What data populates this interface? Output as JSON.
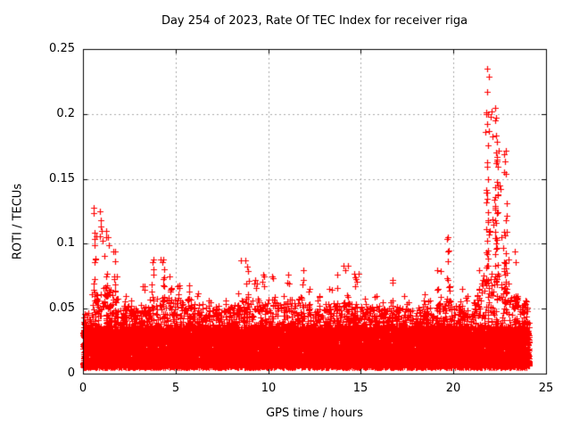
{
  "page": {
    "background": "#ffffff"
  },
  "chart_data": {
    "type": "scatter",
    "title": "Day 254 of 2023, Rate Of TEC Index for receiver riga",
    "xlabel": "GPS time / hours",
    "ylabel": "ROTI / TECUs",
    "xlim": [
      0,
      25
    ],
    "ylim": [
      0,
      0.25
    ],
    "xticks": [
      0,
      5,
      10,
      15,
      20,
      25
    ],
    "xtick_labels": [
      "0",
      "5",
      "10",
      "15",
      "20",
      "25"
    ],
    "yticks": [
      0,
      0.05,
      0.1,
      0.15,
      0.2,
      0.25
    ],
    "ytick_labels": [
      "0",
      "0.05",
      "0.1",
      "0.15",
      "0.2",
      "0.25"
    ],
    "grid": true,
    "legend_position": "none",
    "series_name": "ROTI",
    "marker_shape": "plus",
    "marker_color": "#ff0000",
    "grid_color": "#a8a8a8",
    "axis_color": "#000000",
    "text_color": "#000000",
    "data_hours_range": [
      0,
      24.1
    ],
    "baseline_band": {
      "y_min": 0.004,
      "y_max": 0.036
    },
    "bin_width_hours": 0.5,
    "bins_start_hour": 0,
    "bins_dense_top": [
      0.04,
      0.055,
      0.06,
      0.055,
      0.045,
      0.044,
      0.046,
      0.05,
      0.052,
      0.052,
      0.05,
      0.05,
      0.046,
      0.044,
      0.042,
      0.044,
      0.046,
      0.052,
      0.05,
      0.048,
      0.05,
      0.046,
      0.05,
      0.05,
      0.046,
      0.045,
      0.046,
      0.048,
      0.048,
      0.045,
      0.044,
      0.044,
      0.042,
      0.044,
      0.043,
      0.042,
      0.044,
      0.042,
      0.046,
      0.05,
      0.046,
      0.044,
      0.052,
      0.068,
      0.07,
      0.062,
      0.052,
      0.046
    ],
    "bins_max": [
      0.048,
      0.128,
      0.11,
      0.094,
      0.06,
      0.056,
      0.067,
      0.088,
      0.088,
      0.075,
      0.068,
      0.068,
      0.062,
      0.056,
      0.052,
      0.056,
      0.062,
      0.087,
      0.072,
      0.076,
      0.075,
      0.06,
      0.076,
      0.08,
      0.065,
      0.06,
      0.065,
      0.076,
      0.083,
      0.077,
      0.058,
      0.06,
      0.055,
      0.072,
      0.06,
      0.055,
      0.061,
      0.056,
      0.08,
      0.105,
      0.065,
      0.06,
      0.08,
      0.235,
      0.205,
      0.172,
      0.094,
      0.056
    ],
    "notable_points": [
      [
        0.9,
        0.106
      ],
      [
        0.92,
        0.125
      ],
      [
        0.95,
        0.118
      ],
      [
        0.97,
        0.113
      ],
      [
        1.0,
        0.11
      ],
      [
        1.05,
        0.102
      ],
      [
        1.35,
        0.105
      ],
      [
        1.38,
        0.099
      ],
      [
        1.62,
        0.094
      ],
      [
        3.78,
        0.086
      ],
      [
        4.2,
        0.088
      ],
      [
        8.55,
        0.087
      ],
      [
        14.05,
        0.083
      ],
      [
        14.15,
        0.08
      ],
      [
        14.9,
        0.077
      ],
      [
        16.7,
        0.07
      ],
      [
        19.3,
        0.079
      ],
      [
        19.65,
        0.104
      ],
      [
        21.75,
        0.201
      ],
      [
        21.8,
        0.235
      ],
      [
        21.85,
        0.2
      ],
      [
        21.9,
        0.187
      ],
      [
        21.95,
        0.11
      ],
      [
        22.0,
        0.198
      ],
      [
        22.05,
        0.202
      ],
      [
        22.1,
        0.183
      ],
      [
        22.1,
        0.119
      ],
      [
        22.15,
        0.115
      ],
      [
        22.2,
        0.134
      ],
      [
        22.25,
        0.128
      ],
      [
        22.3,
        0.17
      ],
      [
        22.35,
        0.167
      ],
      [
        22.35,
        0.148
      ],
      [
        22.4,
        0.159
      ],
      [
        22.4,
        0.124
      ],
      [
        22.45,
        0.172
      ],
      [
        22.5,
        0.145
      ],
      [
        22.55,
        0.142
      ],
      [
        22.6,
        0.105
      ],
      [
        22.7,
        0.097
      ],
      [
        22.85,
        0.093
      ],
      [
        23.0,
        0.088
      ]
    ]
  }
}
